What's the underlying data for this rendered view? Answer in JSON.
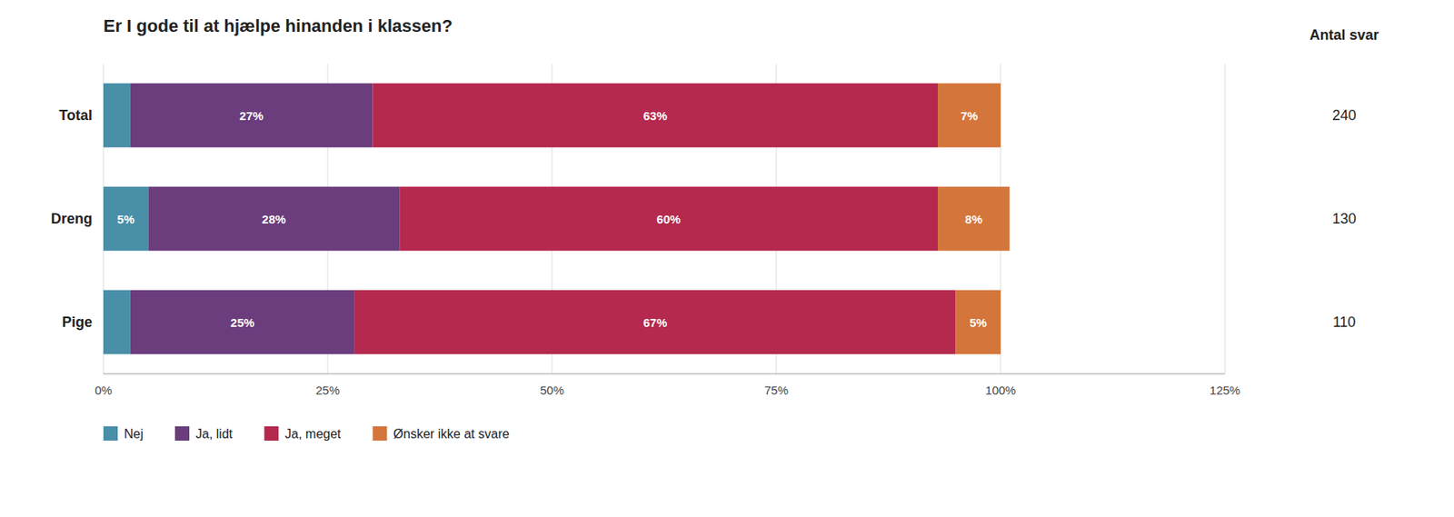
{
  "chart_data": {
    "type": "bar",
    "orientation": "horizontal",
    "stacked": true,
    "title": "Er I gode til at hjælpe hinanden i klassen?",
    "categories": [
      "Total",
      "Dreng",
      "Pige"
    ],
    "series": [
      {
        "name": "Nej",
        "color": "#4a8fa8",
        "values": [
          3,
          5,
          3
        ],
        "value_labels": [
          null,
          "5%",
          null
        ]
      },
      {
        "name": "Ja, lidt",
        "color": "#6b3d7d",
        "values": [
          27,
          28,
          25
        ],
        "value_labels": [
          "27%",
          "28%",
          "25%"
        ]
      },
      {
        "name": "Ja, meget",
        "color": "#b5294e",
        "values": [
          63,
          60,
          67
        ],
        "value_labels": [
          "63%",
          "60%",
          "67%"
        ]
      },
      {
        "name": "Ønsker ikke at svare",
        "color": "#d4763b",
        "values": [
          7,
          8,
          5
        ],
        "value_labels": [
          "7%",
          "8%",
          "5%"
        ]
      }
    ],
    "data_labels": true,
    "xlim": [
      0,
      125
    ],
    "xticks": [
      {
        "value": 0,
        "label": "0%"
      },
      {
        "value": 25,
        "label": "25%"
      },
      {
        "value": 50,
        "label": "50%"
      },
      {
        "value": 75,
        "label": "75%"
      },
      {
        "value": 100,
        "label": "100%"
      },
      {
        "value": 125,
        "label": "125%"
      }
    ],
    "grid": true,
    "legend": "bottom",
    "counts_title": "Antal svar",
    "counts": [
      240,
      130,
      110
    ]
  }
}
